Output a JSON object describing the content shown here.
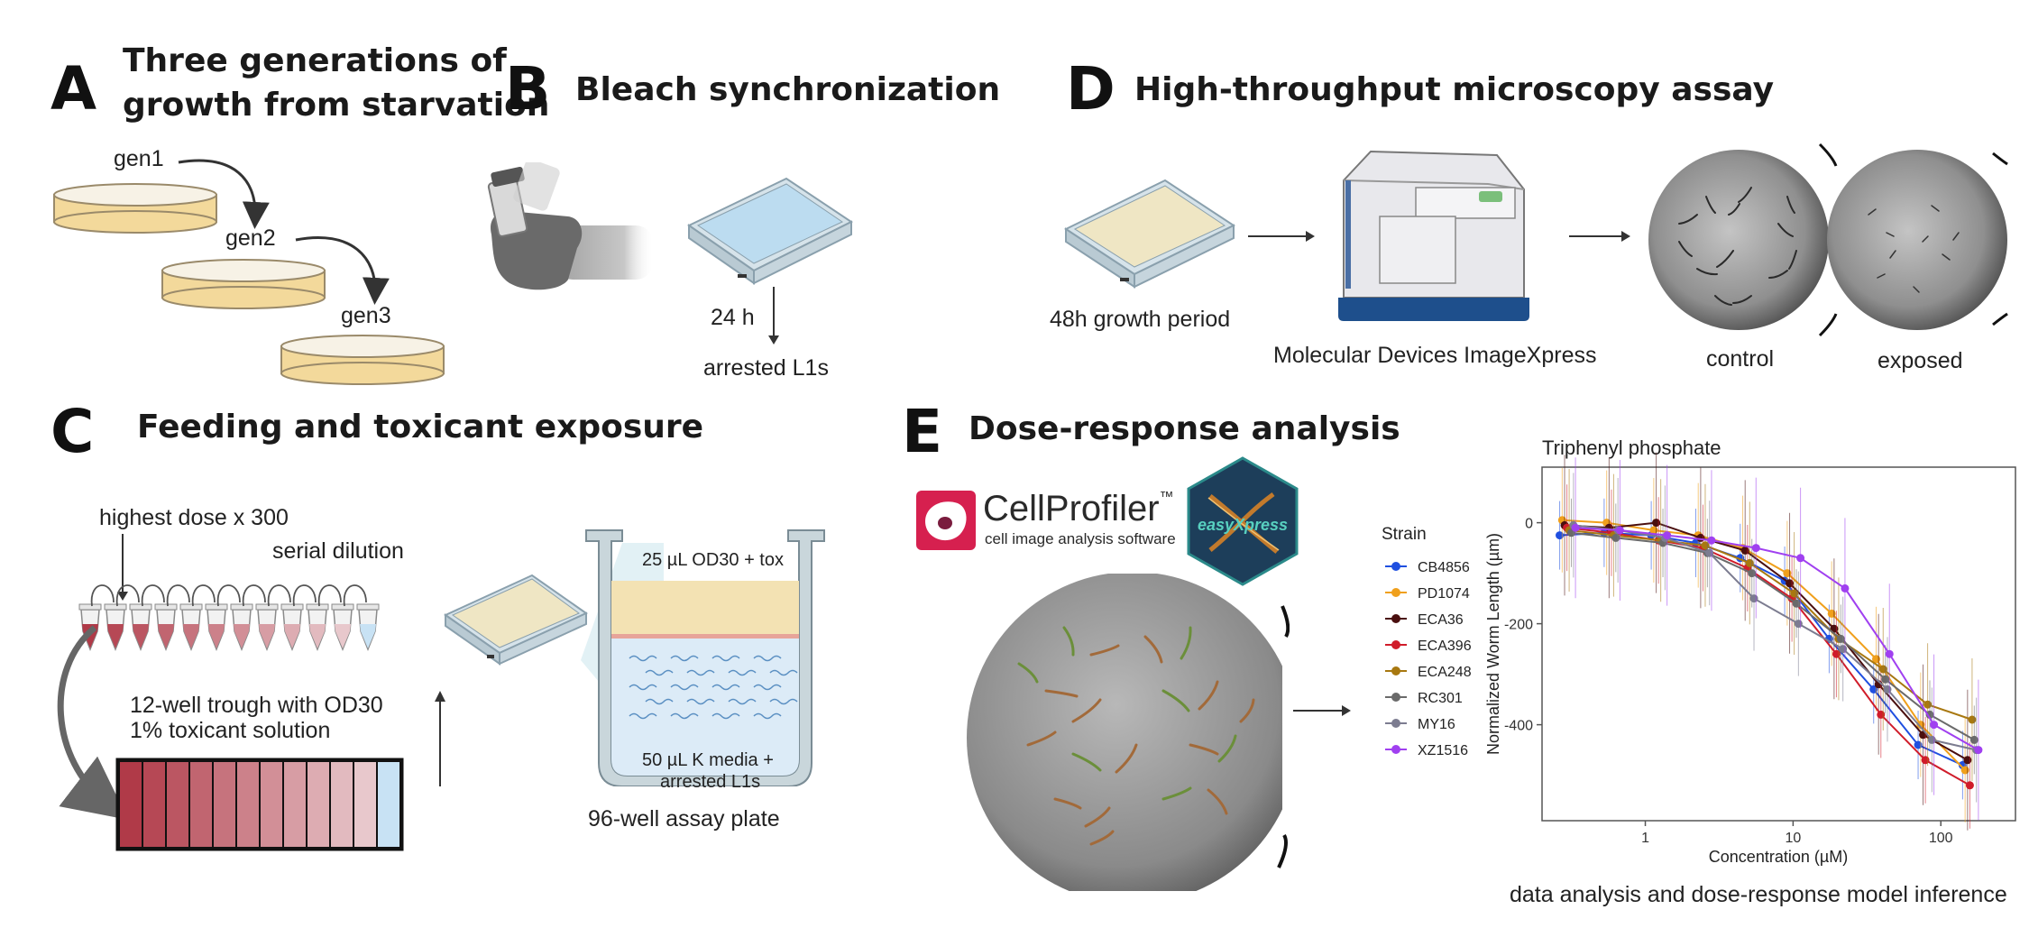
{
  "panels": {
    "a": {
      "letter": "A",
      "title_line1": "Three generations of",
      "title_line2": "growth from starvation",
      "gen1": "gen1",
      "gen2": "gen2",
      "gen3": "gen3"
    },
    "b": {
      "letter": "B",
      "title": "Bleach synchronization",
      "time": "24 h",
      "result": "arrested L1s"
    },
    "c": {
      "letter": "C",
      "title": "Feeding and toxicant exposure",
      "highest_dose": "highest dose x 300",
      "serial_dilution": "serial dilution",
      "trough_line1": "12-well trough with OD30",
      "trough_line2": "1% toxicant solution",
      "top_layer": "25 µL OD30 + tox",
      "bottom_line1": "50 µL K media +",
      "bottom_line2": "arrested L1s",
      "plate": "96-well assay plate"
    },
    "d": {
      "letter": "D",
      "title": "High-throughput microscopy assay",
      "growth": "48h growth period",
      "instrument": "Molecular Devices ImageXpress",
      "control": "control",
      "exposed": "exposed"
    },
    "e": {
      "letter": "E",
      "title": "Dose-response analysis",
      "cellprofiler_name": "CellProfiler",
      "cellprofiler_tm": "™",
      "cellprofiler_sub": "cell image analysis software",
      "easyxpress_logo": "easyXpress",
      "caption": "data analysis and dose-response model inference"
    }
  },
  "colors": {
    "dose_dark": "#b03a48",
    "dose_light": "#e8c8cc",
    "blank_well": "#c8e2f4",
    "media_yellow": "#f3e2b3",
    "media_blue": "#dcebf7"
  },
  "chart_data": {
    "type": "line",
    "title": "Triphenyl phosphate",
    "xlabel": "Concentration (µM)",
    "ylabel": "Normalized Worm Length (µm)",
    "x_scale": "log",
    "x_ticks": [
      1,
      10,
      100
    ],
    "x_tick_labels": [
      "1",
      "10",
      "100"
    ],
    "y_ticks": [
      0,
      -200,
      -400
    ],
    "y_tick_labels": [
      "0",
      "-200",
      "-400"
    ],
    "xlim": [
      0.2,
      320
    ],
    "ylim": [
      -590,
      110
    ],
    "legend_title": "Strain",
    "legend_position": "left",
    "x": [
      0.3,
      0.6,
      1.25,
      2.5,
      5,
      10,
      20,
      40,
      80,
      160
    ],
    "series": [
      {
        "name": "CB4856",
        "color": "#1f4fe0",
        "values": [
          -25,
          -20,
          -25,
          -40,
          -70,
          -115,
          -230,
          -330,
          -440,
          -480
        ]
      },
      {
        "name": "PD1074",
        "color": "#f0a01c",
        "values": [
          5,
          0,
          -15,
          -25,
          -50,
          -100,
          -180,
          -270,
          -400,
          -490
        ]
      },
      {
        "name": "ECA36",
        "color": "#4a0f0f",
        "values": [
          -5,
          -10,
          0,
          -30,
          -55,
          -120,
          -210,
          -320,
          -420,
          -470
        ]
      },
      {
        "name": "ECA396",
        "color": "#d01c2a",
        "values": [
          -10,
          -20,
          -35,
          -50,
          -90,
          -150,
          -260,
          -380,
          -470,
          -520
        ]
      },
      {
        "name": "ECA248",
        "color": "#a87810",
        "values": [
          -15,
          -25,
          -35,
          -45,
          -80,
          -140,
          -230,
          -290,
          -360,
          -390
        ]
      },
      {
        "name": "RC301",
        "color": "#6a6a6a",
        "values": [
          -20,
          -30,
          -40,
          -60,
          -100,
          -160,
          -230,
          -310,
          -380,
          -430
        ]
      },
      {
        "name": "MY16",
        "color": "#7c7c90",
        "values": [
          -5,
          -15,
          -30,
          -60,
          -150,
          -200,
          -250,
          -330,
          -430,
          -450
        ]
      },
      {
        "name": "XZ1516",
        "color": "#a040f0",
        "values": [
          -10,
          -15,
          -25,
          -35,
          -50,
          -70,
          -130,
          -260,
          -400,
          -450
        ]
      }
    ]
  }
}
